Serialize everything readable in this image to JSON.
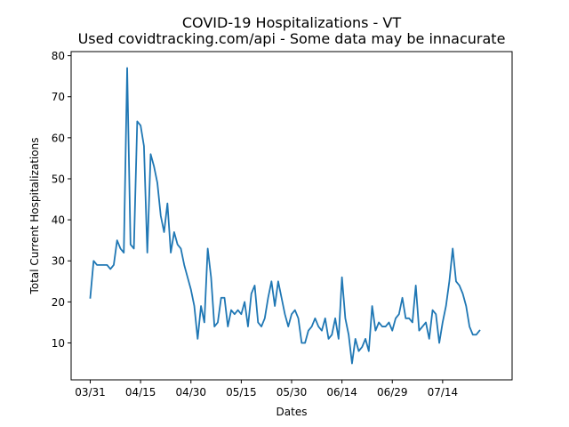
{
  "chart_data": {
    "type": "line",
    "title": "COVID-19 Hospitalizations - VT",
    "subtitle": "Used covidtracking.com/api - Some data may be innacurate",
    "xlabel": "Dates",
    "ylabel": "Total Current Hospitalizations",
    "ylim": [
      1,
      81
    ],
    "yticks": [
      10,
      20,
      30,
      40,
      50,
      60,
      70,
      80
    ],
    "xticks": [
      {
        "label": "03/31",
        "day": 0
      },
      {
        "label": "04/15",
        "day": 15
      },
      {
        "label": "04/30",
        "day": 30
      },
      {
        "label": "05/15",
        "day": 45
      },
      {
        "label": "05/30",
        "day": 60
      },
      {
        "label": "06/14",
        "day": 75
      },
      {
        "label": "06/29",
        "day": 90
      },
      {
        "label": "07/14",
        "day": 105
      }
    ],
    "xlim_days": [
      -5.7,
      125.7
    ],
    "grid": false,
    "line_color": "#1f77b4",
    "series": [
      {
        "values": [
          21,
          30,
          29,
          29,
          29,
          29,
          28,
          29,
          35,
          33,
          32,
          77,
          34,
          33,
          64,
          63,
          58,
          32,
          56,
          53,
          49,
          41,
          37,
          44,
          32,
          37,
          34,
          33,
          29,
          26,
          23,
          19,
          11,
          19,
          15,
          33,
          26,
          14,
          15,
          21,
          21,
          14,
          18,
          17,
          18,
          17,
          20,
          14,
          22,
          24,
          15,
          14,
          16,
          21,
          25,
          19,
          25,
          21,
          17,
          14,
          17,
          18,
          16,
          10,
          10,
          13,
          14,
          16,
          14,
          13,
          16,
          11,
          12,
          16,
          11,
          26,
          16,
          12,
          5,
          11,
          8,
          9,
          11,
          8,
          19,
          13,
          15,
          14,
          14,
          15,
          13,
          16,
          17,
          21,
          16,
          16,
          15,
          24,
          13,
          14,
          15,
          11,
          18,
          17,
          10,
          15,
          19,
          25,
          33,
          25,
          24,
          22,
          19,
          14,
          12,
          12,
          13
        ]
      }
    ]
  }
}
